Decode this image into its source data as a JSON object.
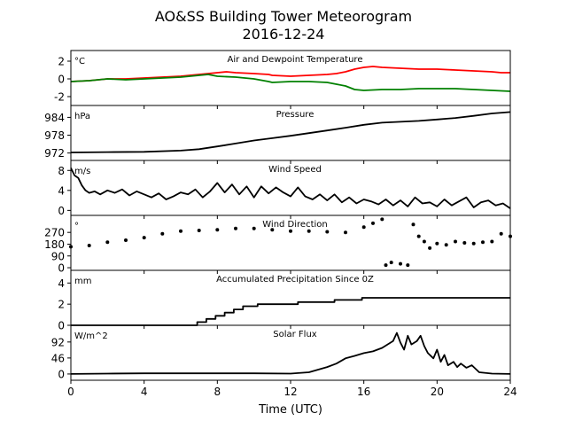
{
  "figure": {
    "title_line1": "AO&SS Building Tower Meteorogram",
    "title_line2": "2016-12-24",
    "xlabel": "Time (UTC)",
    "x_ticks": [
      0,
      4,
      8,
      12,
      16,
      20,
      24
    ]
  },
  "chart_data": [
    {
      "type": "line",
      "title": "Air and Dewpoint Temperature",
      "unit_label": "°C",
      "ylim": [
        -3,
        3.2
      ],
      "yticks": [
        -2,
        0,
        2
      ],
      "series": [
        {
          "color": "#ff0000",
          "x": [
            0,
            1,
            2,
            3,
            4,
            5,
            6,
            7,
            7.5,
            8,
            8.5,
            9,
            10,
            10.8,
            11,
            12,
            13,
            14,
            14.5,
            15,
            15.5,
            16,
            16.5,
            17,
            18,
            19,
            20,
            21,
            22,
            23,
            23.5,
            24
          ],
          "y": [
            -0.3,
            -0.2,
            0.0,
            0.0,
            0.1,
            0.2,
            0.3,
            0.5,
            0.6,
            0.7,
            0.8,
            0.7,
            0.6,
            0.5,
            0.4,
            0.3,
            0.4,
            0.5,
            0.6,
            0.8,
            1.1,
            1.3,
            1.4,
            1.3,
            1.2,
            1.1,
            1.1,
            1.0,
            0.9,
            0.8,
            0.7,
            0.7
          ]
        },
        {
          "color": "#008000",
          "x": [
            0,
            1,
            2,
            3,
            4,
            5,
            6,
            7,
            7.5,
            8,
            9,
            10,
            10.8,
            11,
            12,
            13,
            14,
            14.5,
            15,
            15.5,
            16,
            17,
            18,
            19,
            20,
            21,
            22,
            23,
            24
          ],
          "y": [
            -0.3,
            -0.2,
            0.0,
            -0.1,
            0.0,
            0.1,
            0.2,
            0.4,
            0.5,
            0.3,
            0.2,
            0.0,
            -0.3,
            -0.4,
            -0.3,
            -0.3,
            -0.4,
            -0.6,
            -0.8,
            -1.2,
            -1.3,
            -1.2,
            -1.2,
            -1.1,
            -1.1,
            -1.1,
            -1.2,
            -1.3,
            -1.4
          ]
        }
      ]
    },
    {
      "type": "line",
      "title": "Pressure",
      "unit_label": "hPa",
      "ylim": [
        969.5,
        988
      ],
      "yticks": [
        972,
        978,
        984
      ],
      "series": [
        {
          "color": "#000000",
          "x": [
            0,
            2,
            4,
            6,
            7,
            8,
            9,
            10,
            11,
            12,
            13,
            14,
            15,
            16,
            17,
            18,
            19,
            20,
            21,
            22,
            23,
            24
          ],
          "y": [
            972.2,
            972.3,
            972.4,
            972.8,
            973.3,
            974.2,
            975.2,
            976.2,
            977.0,
            977.8,
            978.7,
            979.6,
            980.5,
            981.5,
            982.2,
            982.5,
            982.8,
            983.3,
            983.8,
            984.5,
            985.3,
            985.8
          ]
        }
      ]
    },
    {
      "type": "line",
      "title": "Wind Speed",
      "unit_label": "m/s",
      "ylim": [
        -1,
        10
      ],
      "yticks": [
        0,
        4,
        8
      ],
      "series": [
        {
          "color": "#000000",
          "x": [
            0,
            0.2,
            0.4,
            0.6,
            0.8,
            1,
            1.3,
            1.6,
            2,
            2.4,
            2.8,
            3.2,
            3.6,
            4,
            4.4,
            4.8,
            5.2,
            5.6,
            6,
            6.4,
            6.8,
            7.2,
            7.6,
            8,
            8.4,
            8.8,
            9.2,
            9.6,
            10,
            10.4,
            10.8,
            11.2,
            11.6,
            12,
            12.4,
            12.8,
            13.2,
            13.6,
            14,
            14.4,
            14.8,
            15.2,
            15.6,
            16,
            16.4,
            16.8,
            17.2,
            17.6,
            18,
            18.4,
            18.8,
            19.2,
            19.6,
            20,
            20.4,
            20.8,
            21.2,
            21.6,
            22,
            22.4,
            22.8,
            23.2,
            23.6,
            24
          ],
          "y": [
            8.5,
            7.0,
            6.5,
            5.0,
            4.0,
            3.5,
            3.8,
            3.2,
            4.0,
            3.5,
            4.2,
            3.0,
            3.8,
            3.2,
            2.6,
            3.4,
            2.2,
            2.8,
            3.6,
            3.2,
            4.2,
            2.6,
            3.8,
            5.5,
            3.6,
            5.2,
            3.2,
            4.8,
            2.6,
            4.8,
            3.4,
            4.6,
            3.6,
            2.8,
            4.6,
            2.8,
            2.2,
            3.2,
            2.0,
            3.2,
            1.6,
            2.6,
            1.4,
            2.2,
            1.8,
            1.2,
            2.2,
            1.0,
            2.0,
            0.8,
            2.6,
            1.4,
            1.6,
            0.8,
            2.2,
            1.0,
            1.8,
            2.6,
            0.6,
            1.6,
            2.0,
            1.0,
            1.4,
            0.4
          ]
        }
      ]
    },
    {
      "type": "scatter",
      "title": "Wind Direction",
      "unit_label": "°",
      "ylim": [
        -20,
        400
      ],
      "yticks": [
        0,
        90,
        180,
        270
      ],
      "series": [
        {
          "color": "#000000",
          "x": [
            0,
            1,
            2,
            3,
            4,
            5,
            6,
            7,
            8,
            9,
            10,
            11,
            12,
            13,
            14,
            15,
            16,
            16.5,
            17,
            17.2,
            17.5,
            18,
            18.4,
            18.7,
            19,
            19.3,
            19.6,
            20,
            20.5,
            21,
            21.5,
            22,
            22.5,
            23,
            23.5,
            24
          ],
          "y": [
            160,
            170,
            195,
            210,
            230,
            260,
            280,
            285,
            290,
            300,
            300,
            290,
            280,
            280,
            275,
            270,
            310,
            340,
            370,
            20,
            40,
            30,
            20,
            330,
            240,
            200,
            150,
            185,
            175,
            200,
            190,
            185,
            195,
            200,
            260,
            240
          ]
        }
      ]
    },
    {
      "type": "line",
      "title": "Accumulated Precipitation Since 0Z",
      "unit_label": "mm",
      "ylim": [
        0,
        5.2
      ],
      "yticks": [
        0,
        2,
        4
      ],
      "series": [
        {
          "color": "#000000",
          "x": [
            0,
            6.9,
            6.9,
            7.4,
            7.4,
            7.9,
            7.9,
            8.4,
            8.4,
            8.9,
            8.9,
            9.4,
            9.4,
            10.2,
            10.2,
            12.4,
            12.4,
            14.4,
            14.4,
            15.9,
            15.9,
            24
          ],
          "y": [
            0,
            0,
            0.3,
            0.3,
            0.6,
            0.6,
            0.9,
            0.9,
            1.2,
            1.2,
            1.5,
            1.5,
            1.8,
            1.8,
            2.0,
            2.0,
            2.2,
            2.2,
            2.4,
            2.4,
            2.6,
            2.6
          ]
        }
      ]
    },
    {
      "type": "line",
      "title": "Solar Flux",
      "unit_label": "W/m^2",
      "ylim": [
        -18,
        140
      ],
      "yticks": [
        0,
        46,
        92
      ],
      "series": [
        {
          "color": "#000000",
          "x": [
            0,
            2,
            4,
            6,
            8,
            10,
            12,
            13,
            14,
            14.5,
            15,
            15.5,
            16,
            16.5,
            17,
            17.3,
            17.6,
            17.8,
            18,
            18.2,
            18.4,
            18.6,
            18.9,
            19.1,
            19.3,
            19.5,
            19.8,
            20,
            20.2,
            20.4,
            20.6,
            20.9,
            21.1,
            21.3,
            21.6,
            21.9,
            22.3,
            23,
            24
          ],
          "y": [
            0,
            1,
            2,
            2,
            2,
            2,
            1,
            5,
            20,
            30,
            45,
            52,
            60,
            65,
            75,
            85,
            95,
            118,
            90,
            70,
            110,
            85,
            95,
            110,
            80,
            60,
            45,
            70,
            35,
            55,
            25,
            35,
            20,
            30,
            18,
            25,
            5,
            1,
            0
          ]
        }
      ]
    }
  ]
}
